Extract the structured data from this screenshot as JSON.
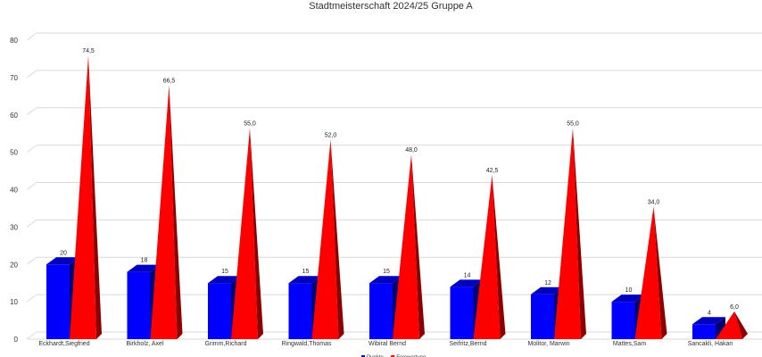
{
  "chart_data": {
    "type": "bar",
    "title": "Stadtmeisterschaft 2024/25 Gruppe A",
    "categories": [
      "Eckhardt,Siegfried",
      "Birkholz, Axel",
      "Grimm,Richard",
      "Ringwald,Thomas",
      "Wibiral Bernd",
      "Seifritz,Bernd",
      "Molitor, Marwin",
      "Mattes,Sam",
      "Sancakli, Hakan"
    ],
    "series": [
      {
        "name": "Punkte",
        "color": "#0000ff",
        "shape": "box",
        "values": [
          20,
          18,
          15,
          15,
          15,
          14,
          12,
          10,
          4
        ],
        "labels": [
          "20",
          "18",
          "15",
          "15",
          "15",
          "14",
          "12",
          "10",
          "4"
        ]
      },
      {
        "name": "Feinwertung",
        "color": "#ff0000",
        "shape": "pyramid",
        "values": [
          74.5,
          66.5,
          55.0,
          52.0,
          48.0,
          42.5,
          55.0,
          34.0,
          6.0
        ],
        "labels": [
          "74,5",
          "66,5",
          "55,0",
          "52,0",
          "48,0",
          "42,5",
          "55,0",
          "34,0",
          "6,0"
        ]
      }
    ],
    "ylim": [
      0,
      80
    ],
    "yticks": [
      0,
      10,
      20,
      30,
      40,
      50,
      60,
      70,
      80
    ],
    "grid": true,
    "legend_position": "bottom"
  }
}
